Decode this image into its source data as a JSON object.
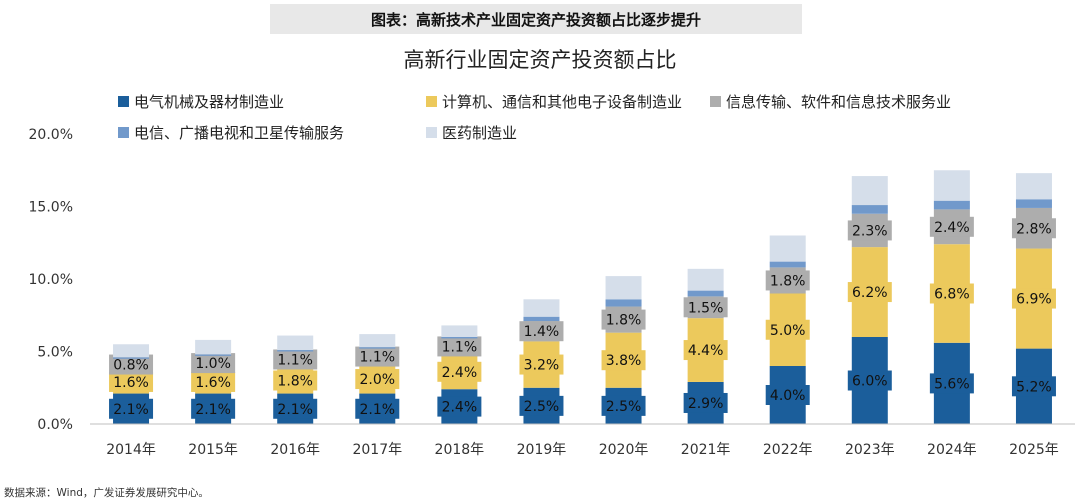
{
  "header": {
    "banner": "图表：高新技术产业固定资产投资额占比逐步提升"
  },
  "chart_data": {
    "type": "stacked-bar",
    "title": "高新行业固定资产投资额占比",
    "categories": [
      "2014年",
      "2015年",
      "2016年",
      "2017年",
      "2018年",
      "2019年",
      "2020年",
      "2021年",
      "2022年",
      "2023年",
      "2024年",
      "2025年"
    ],
    "ylim": [
      0,
      20
    ],
    "yticks": [
      "0.0%",
      "5.0%",
      "10.0%",
      "15.0%",
      "20.0%"
    ],
    "ytick_values": [
      0,
      5,
      10,
      15,
      20
    ],
    "series": [
      {
        "name": "电气机械及器材制造业",
        "color": "#1b5e9b",
        "values": [
          2.1,
          2.1,
          2.1,
          2.1,
          2.4,
          2.5,
          2.5,
          2.9,
          4.0,
          6.0,
          5.6,
          5.2
        ],
        "labels": [
          "2.1%",
          "2.1%",
          "2.1%",
          "2.1%",
          "2.4%",
          "2.5%",
          "2.5%",
          "2.9%",
          "4.0%",
          "6.0%",
          "5.6%",
          "5.2%"
        ]
      },
      {
        "name": "计算机、通信和其他电子设备制造业",
        "color": "#ecc95c",
        "values": [
          1.6,
          1.6,
          1.8,
          2.0,
          2.4,
          3.2,
          3.8,
          4.4,
          5.0,
          6.2,
          6.8,
          6.9
        ],
        "labels": [
          "1.6%",
          "1.6%",
          "1.8%",
          "2.0%",
          "2.4%",
          "3.2%",
          "3.8%",
          "4.4%",
          "5.0%",
          "6.2%",
          "6.8%",
          "6.9%"
        ]
      },
      {
        "name": "信息传输、软件和信息技术服务业",
        "color": "#adadad",
        "values": [
          0.8,
          1.0,
          1.1,
          1.1,
          1.1,
          1.4,
          1.8,
          1.5,
          1.8,
          2.3,
          2.4,
          2.8
        ],
        "labels": [
          "0.8%",
          "1.0%",
          "1.1%",
          "1.1%",
          "1.1%",
          "1.4%",
          "1.8%",
          "1.5%",
          "1.8%",
          "2.3%",
          "2.4%",
          "2.8%"
        ]
      },
      {
        "name": "电信、广播电视和卫星传输服务",
        "color": "#7199cb",
        "values": [
          0.1,
          0.1,
          0.1,
          0.1,
          0.1,
          0.3,
          0.5,
          0.4,
          0.4,
          0.6,
          0.6,
          0.6
        ],
        "labels": null
      },
      {
        "name": "医药制造业",
        "color": "#d5deea",
        "values": [
          0.9,
          1.0,
          1.0,
          0.9,
          0.8,
          1.2,
          1.6,
          1.5,
          1.8,
          2.0,
          2.1,
          1.8
        ],
        "labels": null
      }
    ]
  },
  "footer": {
    "source": "数据来源：Wind，广发证券发展研究中心。"
  }
}
